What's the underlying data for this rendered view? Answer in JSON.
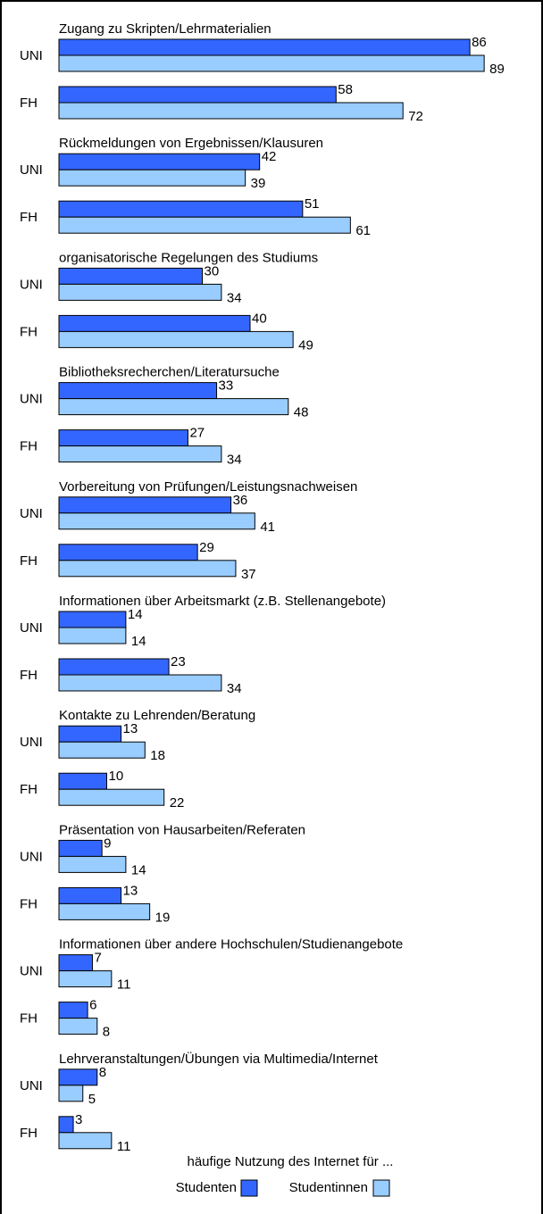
{
  "chart_data": {
    "type": "bar",
    "orientation": "horizontal",
    "legend_title": "häufige Nutzung des Internet für ...",
    "series": [
      {
        "name": "Studenten",
        "color": "#3366ff"
      },
      {
        "name": "Studentinnen",
        "color": "#99ccff"
      }
    ],
    "groups": [
      {
        "title": "Zugang zu Skripten/Lehrmaterialien",
        "categories": [
          "UNI",
          "FH"
        ],
        "values": [
          [
            86,
            89
          ],
          [
            58,
            72
          ]
        ]
      },
      {
        "title": "Rückmeldungen von Ergebnissen/Klausuren",
        "categories": [
          "UNI",
          "FH"
        ],
        "values": [
          [
            42,
            39
          ],
          [
            51,
            61
          ]
        ]
      },
      {
        "title": "organisatorische Regelungen des Studiums",
        "categories": [
          "UNI",
          "FH"
        ],
        "values": [
          [
            30,
            34
          ],
          [
            40,
            49
          ]
        ]
      },
      {
        "title": "Bibliotheksrecherchen/Literatursuche",
        "categories": [
          "UNI",
          "FH"
        ],
        "values": [
          [
            33,
            48
          ],
          [
            27,
            34
          ]
        ]
      },
      {
        "title": "Vorbereitung von Prüfungen/Leistungsnachweisen",
        "categories": [
          "UNI",
          "FH"
        ],
        "values": [
          [
            36,
            41
          ],
          [
            29,
            37
          ]
        ]
      },
      {
        "title": "Informationen über Arbeitsmarkt (z.B. Stellenangebote)",
        "categories": [
          "UNI",
          "FH"
        ],
        "values": [
          [
            14,
            14
          ],
          [
            23,
            34
          ]
        ]
      },
      {
        "title": "Kontakte zu Lehrenden/Beratung",
        "categories": [
          "UNI",
          "FH"
        ],
        "values": [
          [
            13,
            18
          ],
          [
            10,
            22
          ]
        ]
      },
      {
        "title": "Präsentation von Hausarbeiten/Referaten",
        "categories": [
          "UNI",
          "FH"
        ],
        "values": [
          [
            9,
            14
          ],
          [
            13,
            19
          ]
        ]
      },
      {
        "title": "Informationen über andere Hochschulen/Studienangebote",
        "categories": [
          "UNI",
          "FH"
        ],
        "values": [
          [
            7,
            11
          ],
          [
            6,
            8
          ]
        ]
      },
      {
        "title": "Lehrveranstaltungen/Übungen via Multimedia/Internet",
        "categories": [
          "UNI",
          "FH"
        ],
        "values": [
          [
            8,
            5
          ],
          [
            3,
            11
          ]
        ]
      }
    ]
  }
}
